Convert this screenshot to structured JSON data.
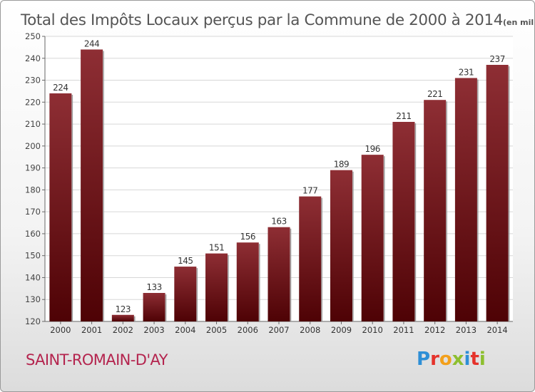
{
  "chart_data": {
    "type": "bar",
    "title": "Total des Impôts Locaux perçus par la Commune de 2000 à 2014",
    "unit_label": "(en milliers d'€)",
    "categories": [
      "2000",
      "2001",
      "2002",
      "2003",
      "2004",
      "2005",
      "2006",
      "2007",
      "2008",
      "2009",
      "2010",
      "2011",
      "2012",
      "2013",
      "2014"
    ],
    "values": [
      224,
      244,
      123,
      133,
      145,
      151,
      156,
      163,
      177,
      189,
      196,
      211,
      221,
      231,
      237
    ],
    "ylim": [
      120,
      250
    ],
    "yticks": [
      120,
      130,
      140,
      150,
      160,
      170,
      180,
      190,
      200,
      210,
      220,
      230,
      240,
      250
    ],
    "xlabel": "",
    "ylabel": "",
    "grid": true,
    "bar_color_top": "#8e2e34",
    "bar_color_bottom": "#4e0205"
  },
  "footer": {
    "commune_name": "SAINT-ROMAIN-D'AY",
    "logo_text": "Proxiti",
    "logo_colors": [
      "#2e8fd6",
      "#e5322b",
      "#f3a01b",
      "#8dbf2f",
      "#2e8fd6",
      "#e5322b",
      "#8dbf2f"
    ]
  }
}
